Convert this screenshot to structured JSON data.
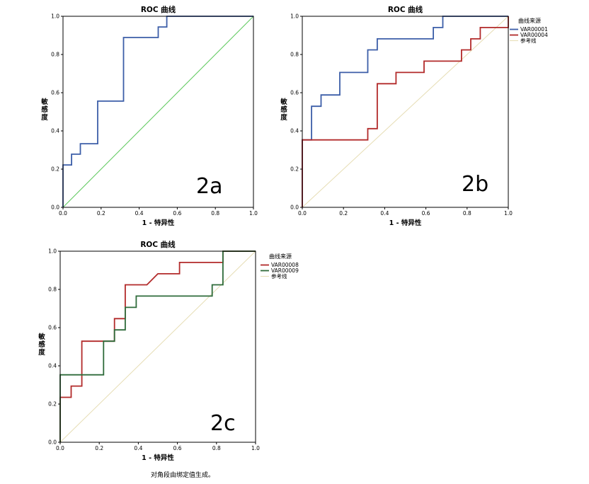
{
  "chart_data": [
    {
      "type": "line",
      "id": "2a",
      "panel_label": "2a",
      "title": "ROC 曲线",
      "xlabel": "1 - 特异性",
      "ylabel": "敏感度",
      "xlim": [
        0,
        1
      ],
      "ylim": [
        0,
        1
      ],
      "ticks": [
        "0.0",
        "0.2",
        "0.4",
        "0.6",
        "0.8",
        "1.0"
      ],
      "legend": null,
      "footnote": null,
      "series": [
        {
          "name": "",
          "color": "#3c5ea8",
          "points": [
            [
              0,
              0
            ],
            [
              0,
              0.222
            ],
            [
              0.045,
              0.222
            ],
            [
              0.045,
              0.278
            ],
            [
              0.091,
              0.278
            ],
            [
              0.091,
              0.333
            ],
            [
              0.182,
              0.333
            ],
            [
              0.182,
              0.556
            ],
            [
              0.318,
              0.556
            ],
            [
              0.318,
              0.889
            ],
            [
              0.5,
              0.889
            ],
            [
              0.5,
              0.944
            ],
            [
              0.545,
              0.944
            ],
            [
              0.545,
              1
            ],
            [
              1,
              1
            ]
          ]
        }
      ],
      "reference": {
        "color": "#5cc85c"
      }
    },
    {
      "type": "line",
      "id": "2b",
      "panel_label": "2b",
      "title": "ROC 曲线",
      "xlabel": "1 - 特异性",
      "ylabel": "敏感度",
      "xlim": [
        0,
        1
      ],
      "ylim": [
        0,
        1
      ],
      "ticks": [
        "0.0",
        "0.2",
        "0.4",
        "0.6",
        "0.8",
        "1.0"
      ],
      "legend": {
        "title": "曲线来源",
        "entries": [
          "VAR00001",
          "VAR00004",
          "参考线"
        ]
      },
      "footnote": null,
      "series": [
        {
          "name": "VAR00001",
          "color": "#3c5ea8",
          "points": [
            [
              0,
              0
            ],
            [
              0,
              0.353
            ],
            [
              0.045,
              0.353
            ],
            [
              0.045,
              0.529
            ],
            [
              0.091,
              0.529
            ],
            [
              0.091,
              0.588
            ],
            [
              0.182,
              0.588
            ],
            [
              0.182,
              0.706
            ],
            [
              0.318,
              0.706
            ],
            [
              0.318,
              0.824
            ],
            [
              0.364,
              0.824
            ],
            [
              0.364,
              0.882
            ],
            [
              0.636,
              0.882
            ],
            [
              0.636,
              0.941
            ],
            [
              0.682,
              0.941
            ],
            [
              0.682,
              1
            ],
            [
              1,
              1
            ]
          ]
        },
        {
          "name": "VAR00004",
          "color": "#b22a2a",
          "points": [
            [
              0,
              0
            ],
            [
              0,
              0.353
            ],
            [
              0.318,
              0.353
            ],
            [
              0.318,
              0.412
            ],
            [
              0.364,
              0.412
            ],
            [
              0.364,
              0.647
            ],
            [
              0.455,
              0.647
            ],
            [
              0.455,
              0.706
            ],
            [
              0.591,
              0.706
            ],
            [
              0.591,
              0.765
            ],
            [
              0.773,
              0.765
            ],
            [
              0.773,
              0.824
            ],
            [
              0.818,
              0.824
            ],
            [
              0.818,
              0.882
            ],
            [
              0.864,
              0.882
            ],
            [
              0.864,
              0.941
            ],
            [
              1,
              0.941
            ],
            [
              1,
              1
            ]
          ]
        }
      ],
      "reference": {
        "color": "#e6ddb4"
      }
    },
    {
      "type": "line",
      "id": "2c",
      "panel_label": "2c",
      "title": "ROC 曲线",
      "xlabel": "1 - 特异性",
      "ylabel": "敏感度",
      "xlim": [
        0,
        1
      ],
      "ylim": [
        0,
        1
      ],
      "ticks": [
        "0.0",
        "0.2",
        "0.4",
        "0.6",
        "0.8",
        "1.0"
      ],
      "legend": {
        "title": "曲线来源",
        "entries": [
          "VAR00008",
          "VAR00009",
          "参考线"
        ]
      },
      "footnote": "对角段由绑定值生成。",
      "series": [
        {
          "name": "VAR00008",
          "color": "#b22a2a",
          "points": [
            [
              0,
              0
            ],
            [
              0,
              0.235
            ],
            [
              0.056,
              0.235
            ],
            [
              0.056,
              0.294
            ],
            [
              0.111,
              0.294
            ],
            [
              0.111,
              0.529
            ],
            [
              0.278,
              0.529
            ],
            [
              0.278,
              0.647
            ],
            [
              0.333,
              0.647
            ],
            [
              0.333,
              0.824
            ],
            [
              0.444,
              0.824
            ],
            [
              0.5,
              0.882
            ],
            [
              0.611,
              0.882
            ],
            [
              0.611,
              0.941
            ],
            [
              0.833,
              0.941
            ],
            [
              0.833,
              1
            ],
            [
              1,
              1
            ]
          ]
        },
        {
          "name": "VAR00009",
          "color": "#2e6b3a",
          "points": [
            [
              0,
              0
            ],
            [
              0,
              0.353
            ],
            [
              0.222,
              0.353
            ],
            [
              0.222,
              0.529
            ],
            [
              0.278,
              0.529
            ],
            [
              0.278,
              0.588
            ],
            [
              0.333,
              0.588
            ],
            [
              0.333,
              0.706
            ],
            [
              0.389,
              0.706
            ],
            [
              0.389,
              0.765
            ],
            [
              0.778,
              0.765
            ],
            [
              0.778,
              0.824
            ],
            [
              0.833,
              0.824
            ],
            [
              0.833,
              1
            ],
            [
              1,
              1
            ]
          ]
        }
      ],
      "reference": {
        "color": "#e6ddb4"
      }
    }
  ]
}
